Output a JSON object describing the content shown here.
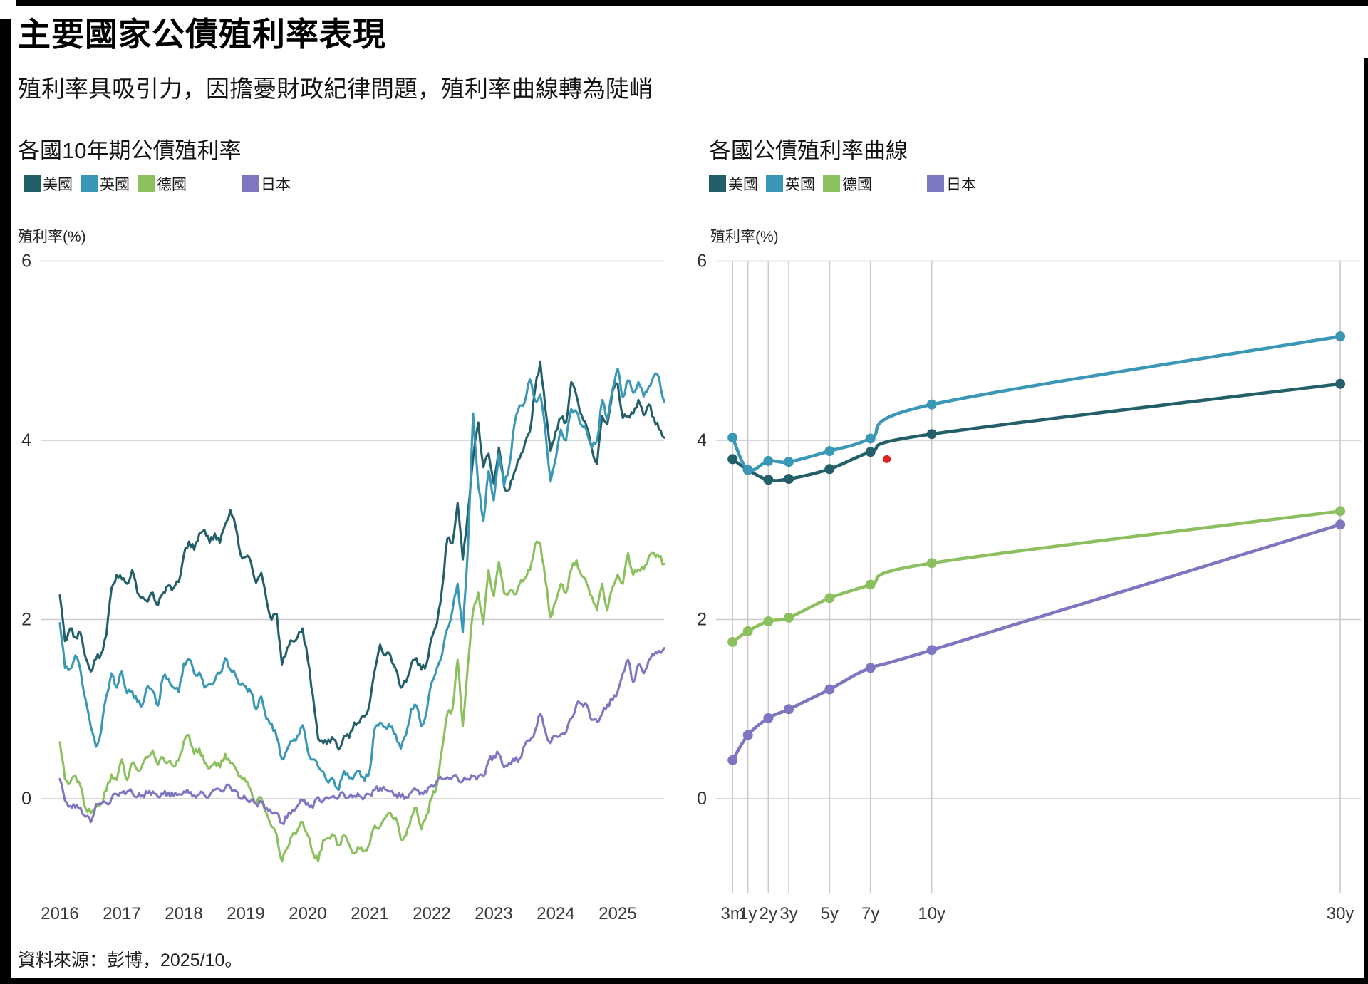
{
  "header": {
    "title": "主要國家公債殖利率表現",
    "subtitle": "殖利率具吸引力，因擔憂財政紀律問題，殖利率曲線轉為陡峭"
  },
  "source": {
    "text": "資料來源：彭博，2025/10。"
  },
  "colors": {
    "us": "#235F69",
    "uk": "#3A97B5",
    "de": "#8CC05F",
    "jp": "#7D76C0",
    "red_dot": "#E02020",
    "gridline": "#CBCBCB",
    "axis_text": "#2E2E2E",
    "frame": "#000000"
  },
  "legend": {
    "items": [
      {
        "id": "us",
        "label": "美國",
        "color": "#235F69"
      },
      {
        "id": "uk",
        "label": "英國",
        "color": "#3A97B5"
      },
      {
        "id": "de",
        "label": "德國",
        "color": "#8CC05F"
      },
      {
        "id": "jp",
        "label": "日本",
        "color": "#7D76C0"
      }
    ]
  },
  "left_chart": {
    "title": "各國10年期公債殖利率",
    "y_axis_label": "殖利率(%)"
  },
  "right_chart": {
    "title": "各國公債殖利率曲線",
    "y_axis_label": "殖利率(%)"
  },
  "chart_data": [
    {
      "type": "line",
      "title": "各國10年期公債殖利率",
      "ylabel": "殖利率(%)",
      "y_ticks": [
        0,
        2,
        4,
        6
      ],
      "ylim": [
        -1,
        6
      ],
      "x_ticks": [
        2016,
        2017,
        2018,
        2019,
        2020,
        2021,
        2022,
        2023,
        2024,
        2025
      ],
      "x_start": 2016.0,
      "x_step_months": 1,
      "grid": "horizontal-only",
      "legend_position": "top-left",
      "series": [
        {
          "name": "美國",
          "color": "#235F69",
          "values": [
            2.27,
            1.76,
            1.9,
            1.8,
            1.85,
            1.57,
            1.42,
            1.56,
            1.62,
            1.83,
            2.35,
            2.5,
            2.45,
            2.4,
            2.55,
            2.3,
            2.25,
            2.2,
            2.3,
            2.16,
            2.3,
            2.38,
            2.35,
            2.42,
            2.72,
            2.87,
            2.78,
            2.96,
            3.0,
            2.86,
            2.96,
            2.86,
            3.06,
            3.22,
            3.04,
            2.72,
            2.7,
            2.64,
            2.41,
            2.52,
            2.22,
            2.0,
            2.06,
            1.5,
            1.68,
            1.76,
            1.8,
            1.9,
            1.55,
            1.15,
            0.67,
            0.62,
            0.66,
            0.66,
            0.55,
            0.7,
            0.68,
            0.85,
            0.85,
            0.92,
            1.07,
            1.44,
            1.72,
            1.6,
            1.6,
            1.45,
            1.24,
            1.3,
            1.5,
            1.57,
            1.44,
            1.51,
            1.8,
            1.95,
            2.35,
            2.9,
            2.85,
            3.3,
            2.67,
            3.2,
            3.8,
            4.2,
            3.7,
            3.85,
            3.52,
            3.92,
            3.48,
            3.45,
            3.65,
            3.8,
            3.96,
            4.1,
            4.57,
            4.88,
            4.35,
            3.88,
            4.1,
            4.25,
            4.2,
            4.65,
            4.5,
            4.28,
            4.15,
            3.9,
            3.74,
            4.27,
            4.18,
            4.55,
            4.63,
            4.25,
            4.27,
            4.3,
            4.45,
            4.28,
            4.4,
            4.25,
            4.12,
            4.03
          ]
        },
        {
          "name": "英國",
          "color": "#3A97B5",
          "values": [
            1.96,
            1.46,
            1.45,
            1.6,
            1.43,
            1.1,
            0.8,
            0.58,
            0.76,
            1.15,
            1.4,
            1.24,
            1.42,
            1.18,
            1.2,
            1.08,
            1.05,
            1.26,
            1.2,
            1.04,
            1.36,
            1.34,
            1.24,
            1.19,
            1.51,
            1.56,
            1.4,
            1.41,
            1.24,
            1.28,
            1.32,
            1.4,
            1.57,
            1.44,
            1.38,
            1.27,
            1.25,
            1.19,
            1.0,
            1.14,
            0.89,
            0.84,
            0.68,
            0.44,
            0.55,
            0.64,
            0.7,
            0.82,
            0.53,
            0.44,
            0.36,
            0.3,
            0.18,
            0.21,
            0.1,
            0.31,
            0.23,
            0.26,
            0.31,
            0.2,
            0.32,
            0.79,
            0.85,
            0.8,
            0.8,
            0.72,
            0.56,
            0.71,
            1.0,
            1.04,
            0.81,
            0.97,
            1.3,
            1.46,
            1.61,
            1.9,
            2.1,
            2.4,
            1.86,
            2.8,
            4.3,
            3.48,
            3.1,
            3.66,
            3.33,
            3.85,
            3.49,
            3.72,
            4.18,
            4.39,
            4.43,
            4.68,
            4.44,
            4.51,
            4.1,
            3.54,
            3.8,
            4.12,
            4.0,
            4.35,
            4.32,
            4.17,
            4.1,
            3.92,
            4.0,
            4.45,
            4.24,
            4.57,
            4.8,
            4.48,
            4.67,
            4.53,
            4.65,
            4.49,
            4.6,
            4.72,
            4.7,
            4.43
          ]
        },
        {
          "name": "德國",
          "color": "#8CC05F",
          "values": [
            0.63,
            0.22,
            0.18,
            0.26,
            0.14,
            -0.11,
            -0.16,
            -0.09,
            -0.05,
            0.09,
            0.27,
            0.21,
            0.44,
            0.21,
            0.4,
            0.32,
            0.38,
            0.46,
            0.54,
            0.38,
            0.46,
            0.41,
            0.36,
            0.43,
            0.64,
            0.71,
            0.5,
            0.56,
            0.4,
            0.34,
            0.41,
            0.35,
            0.5,
            0.4,
            0.34,
            0.25,
            0.19,
            0.1,
            -0.06,
            0.01,
            -0.16,
            -0.31,
            -0.41,
            -0.7,
            -0.55,
            -0.4,
            -0.35,
            -0.26,
            -0.41,
            -0.6,
            -0.7,
            -0.46,
            -0.44,
            -0.41,
            -0.52,
            -0.41,
            -0.51,
            -0.61,
            -0.56,
            -0.58,
            -0.5,
            -0.3,
            -0.31,
            -0.21,
            -0.16,
            -0.21,
            -0.45,
            -0.41,
            -0.21,
            -0.1,
            -0.34,
            -0.18,
            0.01,
            0.15,
            0.56,
            0.95,
            1.0,
            1.55,
            0.81,
            1.5,
            2.1,
            2.3,
            1.95,
            2.55,
            2.26,
            2.64,
            2.3,
            2.31,
            2.28,
            2.4,
            2.46,
            2.55,
            2.84,
            2.86,
            2.44,
            2.02,
            2.2,
            2.4,
            2.3,
            2.56,
            2.66,
            2.49,
            2.4,
            2.26,
            2.1,
            2.4,
            2.1,
            2.36,
            2.5,
            2.4,
            2.74,
            2.5,
            2.56,
            2.56,
            2.7,
            2.74,
            2.7,
            2.62
          ]
        },
        {
          "name": "日本",
          "color": "#7D76C0",
          "values": [
            0.22,
            -0.02,
            -0.08,
            -0.1,
            -0.1,
            -0.2,
            -0.26,
            -0.06,
            -0.06,
            -0.05,
            0.0,
            0.05,
            0.07,
            0.08,
            0.07,
            0.02,
            0.04,
            0.06,
            0.08,
            0.02,
            0.05,
            0.07,
            0.03,
            0.05,
            0.08,
            0.06,
            0.04,
            0.05,
            0.04,
            0.04,
            0.1,
            0.1,
            0.12,
            0.13,
            0.09,
            0.0,
            0.0,
            -0.02,
            -0.06,
            -0.04,
            -0.1,
            -0.16,
            -0.16,
            -0.27,
            -0.21,
            -0.13,
            -0.08,
            -0.02,
            -0.05,
            -0.1,
            0.02,
            -0.02,
            0.0,
            0.03,
            0.02,
            0.05,
            0.02,
            0.03,
            0.03,
            0.02,
            0.05,
            0.1,
            0.12,
            0.1,
            0.08,
            0.05,
            0.02,
            0.02,
            0.07,
            0.1,
            0.07,
            0.07,
            0.15,
            0.2,
            0.22,
            0.24,
            0.24,
            0.23,
            0.2,
            0.22,
            0.25,
            0.25,
            0.25,
            0.42,
            0.48,
            0.5,
            0.35,
            0.4,
            0.42,
            0.45,
            0.6,
            0.65,
            0.76,
            0.95,
            0.75,
            0.62,
            0.7,
            0.72,
            0.74,
            0.9,
            1.05,
            1.06,
            1.05,
            0.88,
            0.86,
            0.95,
            1.05,
            1.1,
            1.2,
            1.4,
            1.55,
            1.3,
            1.5,
            1.4,
            1.55,
            1.6,
            1.65,
            1.68
          ]
        }
      ]
    },
    {
      "type": "line",
      "title": "各國公債殖利率曲線",
      "ylabel": "殖利率(%)",
      "y_ticks": [
        0,
        2,
        4,
        6
      ],
      "ylim": [
        -0.9,
        6
      ],
      "x_tick_labels": [
        "3m",
        "1y",
        "2y",
        "3y",
        "5y",
        "7y",
        "10y",
        "30y"
      ],
      "x_years": [
        0.25,
        1,
        2,
        3,
        5,
        7,
        10,
        30
      ],
      "grid": "both",
      "markers": true,
      "series": [
        {
          "name": "美國",
          "color": "#235F69",
          "values": [
            3.79,
            3.67,
            3.56,
            3.57,
            3.68,
            3.87,
            4.07,
            4.63
          ]
        },
        {
          "name": "英國",
          "color": "#3A97B5",
          "values": [
            4.03,
            3.67,
            3.77,
            3.76,
            3.88,
            4.02,
            4.4,
            5.16
          ]
        },
        {
          "name": "德國",
          "color": "#8CC05F",
          "values": [
            1.75,
            1.87,
            1.98,
            2.02,
            2.24,
            2.39,
            2.63,
            3.21
          ]
        },
        {
          "name": "日本",
          "color": "#7D76C0",
          "values": [
            0.43,
            0.71,
            0.9,
            1.0,
            1.22,
            1.46,
            1.66,
            3.06
          ]
        }
      ],
      "annotations": [
        {
          "type": "dot",
          "color": "#E02020",
          "x_years": 7.8,
          "value": 3.79
        }
      ]
    }
  ]
}
